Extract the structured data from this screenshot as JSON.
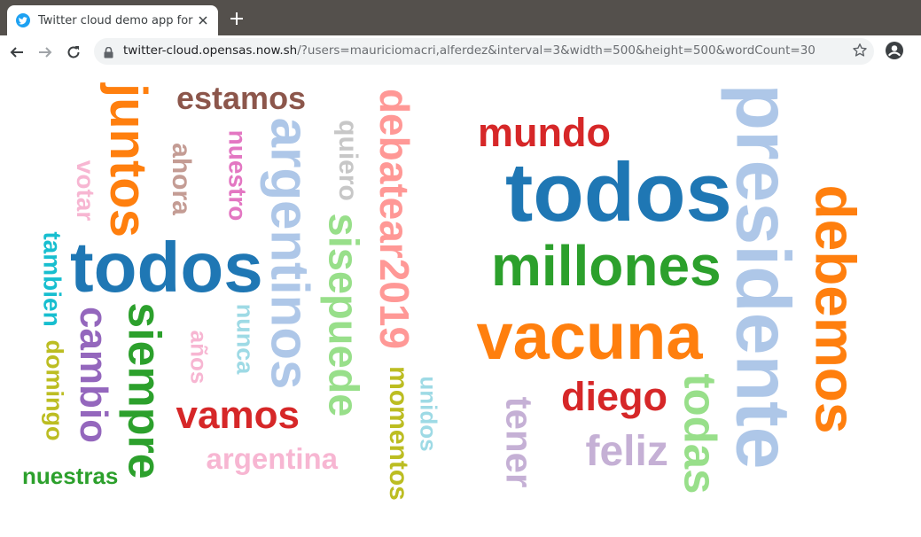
{
  "browser": {
    "tab_title": "Twitter cloud demo app for #l",
    "url_host": "twitter-cloud.opensas.now.sh",
    "url_path": "/?users=mauriciomacri,alferdez&interval=3&width=500&height=500&wordCount=30"
  },
  "clouds": [
    {
      "words": [
        {
          "text": "estamos",
          "color": "#8c564b"
        },
        {
          "text": "juntos",
          "color": "#ff7f0e"
        },
        {
          "text": "ahora",
          "color": "#c49c94"
        },
        {
          "text": "nuestro",
          "color": "#e377c2"
        },
        {
          "text": "argentinos",
          "color": "#aec7e8"
        },
        {
          "text": "quiero",
          "color": "#c7c7c7"
        },
        {
          "text": "debatear2019",
          "color": "#ff9896"
        },
        {
          "text": "votar",
          "color": "#f7b6d2"
        },
        {
          "text": "sisepuede",
          "color": "#98df8a"
        },
        {
          "text": "tambien",
          "color": "#17becf"
        },
        {
          "text": "todos",
          "color": "#1f77b4"
        },
        {
          "text": "cambio",
          "color": "#9467bd"
        },
        {
          "text": "siempre",
          "color": "#2ca02c"
        },
        {
          "text": "años",
          "color": "#f7b6d2"
        },
        {
          "text": "nunca",
          "color": "#9edae5"
        },
        {
          "text": "domingo",
          "color": "#bcbd22"
        },
        {
          "text": "vamos",
          "color": "#d62728"
        },
        {
          "text": "momentos",
          "color": "#bcbd22"
        },
        {
          "text": "argentina",
          "color": "#f7b6d2"
        },
        {
          "text": "nuestras",
          "color": "#2ca02c"
        }
      ]
    },
    {
      "words": [
        {
          "text": "mundo",
          "color": "#d62728"
        },
        {
          "text": "todos",
          "color": "#1f77b4"
        },
        {
          "text": "presidente",
          "color": "#aec7e8"
        },
        {
          "text": "millones",
          "color": "#2ca02c"
        },
        {
          "text": "debemos",
          "color": "#ff7f0e"
        },
        {
          "text": "vacuna",
          "color": "#ff7f0e"
        },
        {
          "text": "unidos",
          "color": "#9edae5"
        },
        {
          "text": "diego",
          "color": "#d62728"
        },
        {
          "text": "todas",
          "color": "#98df8a"
        },
        {
          "text": "tener",
          "color": "#c5b0d5"
        },
        {
          "text": "feliz",
          "color": "#c5b0d5"
        }
      ]
    }
  ]
}
